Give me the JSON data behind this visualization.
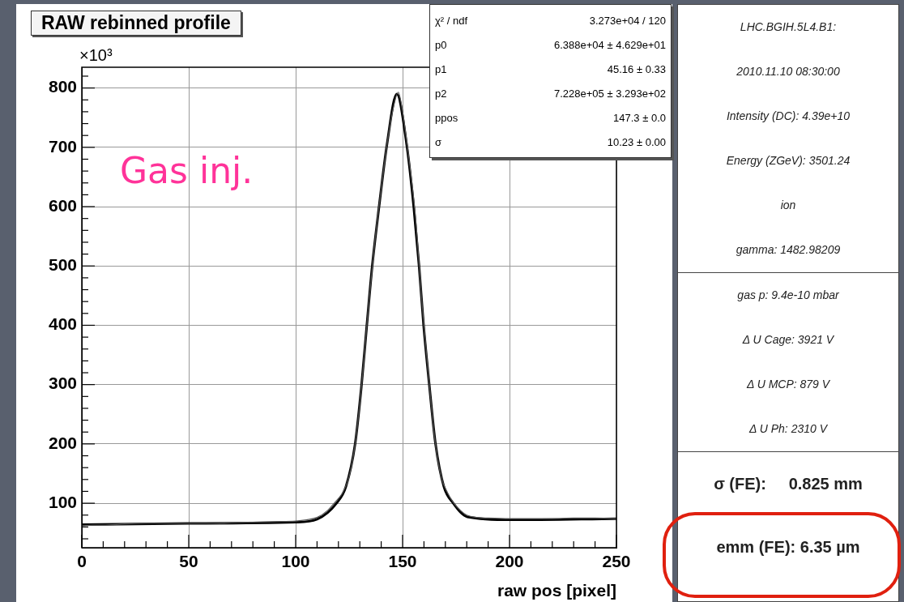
{
  "chart_data": {
    "type": "line",
    "title": "RAW rebinned profile",
    "xlabel": "raw pos [pixel]",
    "ylabel": "×10³",
    "xlim": [
      0,
      250
    ],
    "xticks": [
      0,
      50,
      100,
      150,
      200,
      250
    ],
    "ylim": [
      25,
      835
    ],
    "yticks": [
      100,
      200,
      300,
      400,
      500,
      600,
      700,
      800
    ],
    "grid": true,
    "series": [
      {
        "color": "#555555",
        "x": [
          0,
          5,
          10,
          20,
          30,
          40,
          50,
          60,
          70,
          80,
          90,
          100,
          105,
          110,
          115,
          118,
          120,
          122,
          125,
          128,
          131,
          134,
          137,
          140,
          143,
          146,
          148,
          150,
          153,
          156,
          159,
          162,
          165,
          168,
          171,
          174,
          177,
          180,
          185,
          190,
          200,
          210,
          220,
          230,
          240,
          250
        ],
        "values": [
          62,
          63,
          63,
          65,
          66,
          66,
          66,
          66,
          67,
          68,
          69,
          70,
          72,
          76,
          88,
          100,
          108,
          118,
          145,
          205,
          305,
          430,
          540,
          630,
          712,
          772,
          793,
          760,
          680,
          585,
          440,
          320,
          210,
          145,
          118,
          100,
          88,
          80,
          76,
          75,
          74,
          74,
          74,
          75,
          75,
          74
        ]
      },
      {
        "color": "#000000",
        "x": [
          0,
          50,
          100,
          110,
          119.1,
          123.5,
          127.8,
          130.8,
          133.3,
          135.8,
          139,
          142.7,
          147.3,
          151.9,
          155.2,
          157.7,
          159.8,
          162.5,
          165.4,
          169.3,
          173.7,
          180.3,
          200.7,
          250
        ],
        "values": [
          64,
          66,
          68,
          73,
          100,
          128,
          200,
          299,
          401,
          500,
          600,
          705,
          790,
          705,
          600,
          500,
          401,
          299,
          200,
          128,
          100,
          77,
          72,
          74
        ]
      }
    ],
    "annotations": [
      "Gas inj.",
      "χ² / ndf",
      "3.273e+04 / 120",
      "p0",
      "6.388e+04 ± 4.629e+01",
      "p1",
      "45.16 ± 0.33",
      "p2",
      "7.228e+05 ± 3.293e+02",
      "ppos",
      "147.3 ± 0.0",
      "σ",
      "10.23 ± 0.00",
      "LHC.BGIH.5L4.B1:",
      "2010.11.10 08:30:00",
      "Intensity (DC): 4.39e+10",
      "Energy (ZGeV): 3501.24",
      "ion",
      "gamma: 1482.98209",
      "gas p:  9.4e-10 mbar",
      "Δ U Cage:     3921 V",
      "Δ U MCP:      879 V",
      "Δ U Ph:     2310 V",
      "σ (FE):     0.825 mm",
      "emm (FE): 6.35 µm"
    ]
  }
}
